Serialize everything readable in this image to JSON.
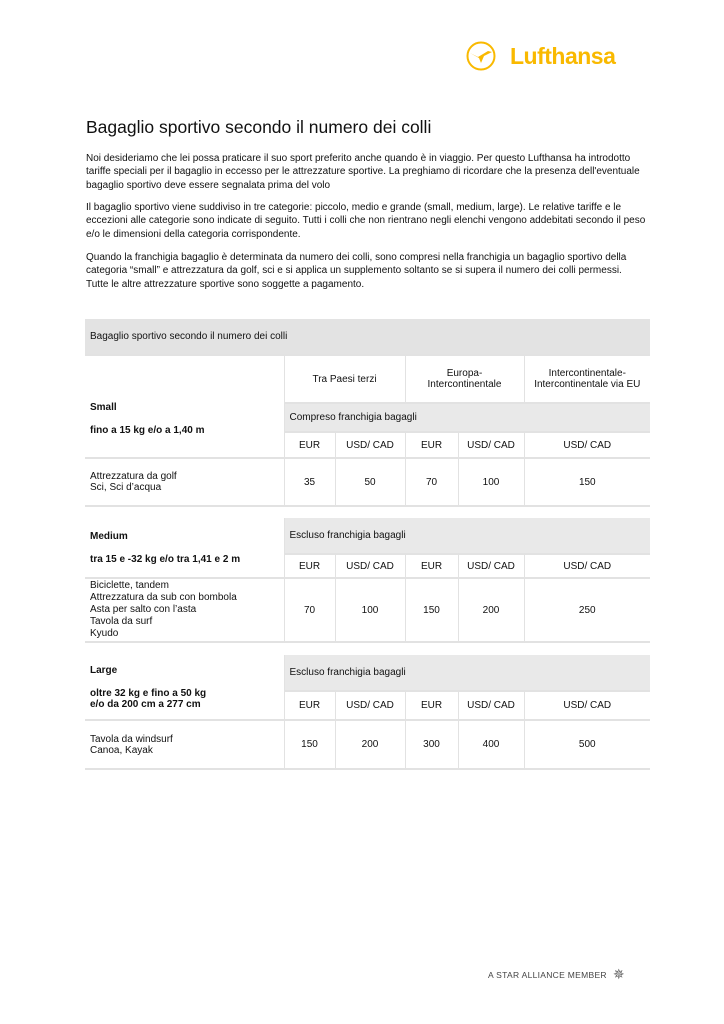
{
  "brand": {
    "name": "Lufthansa",
    "color": "#f9b900"
  },
  "title": "Bagaglio sportivo secondo il numero dei colli",
  "paragraphs": [
    "Noi desideriamo che lei possa praticare il suo sport preferito anche quando è in viaggio. Per questo Lufthansa ha introdotto tariffe speciali per il bagaglio in eccesso per le attrezzature sportive. La preghiamo di ricordare che la presenza dell'eventuale bagaglio sportivo deve essere segnalata prima del volo",
    "Il bagaglio sportivo viene suddiviso in tre categorie: piccolo, medio e grande (small, medium, large). Le relative tariffe e le eccezioni alle categorie sono indicate di seguito. Tutti i colli che non rientrano negli elenchi vengono addebitati secondo il peso e/o le dimensioni della categoria corrispondente.",
    "Quando la franchigia bagaglio è determinata da  numero dei colli, sono compresi nella franchigia un bagaglio sportivo della categoria “small” e attrezzatura da golf, sci e si applica un supplemento soltanto se si supera il numero dei colli permessi. Tutte le altre attrezzature sportive sono soggette a pagamento."
  ],
  "table": {
    "header": "Bagaglio sportivo secondo il numero dei colli",
    "routes": [
      "Tra Paesi terzi",
      "Europa-\nIntercontinentale",
      "Intercontinentale-\nIntercontinentale via EU"
    ],
    "currencies": [
      "EUR",
      "USD/ CAD",
      "EUR",
      "USD/ CAD",
      "USD/ CAD"
    ],
    "sections": [
      {
        "name": "Small",
        "limit": "fino a 15 kg e/o a 1,40 m",
        "franchise": "Compreso franchigia bagagli",
        "items": "Attrezzatura da golf\nSci, Sci d’acqua",
        "prices": [
          "35",
          "50",
          "70",
          "100",
          "150"
        ]
      },
      {
        "name": "Medium",
        "limit": "tra 15 e -32 kg e/o tra 1,41 e 2 m",
        "franchise": "Escluso franchigia bagagli",
        "items": "Biciclette, tandem\nAttrezzatura da sub con bombola\nAsta per salto con l’asta\nTavola da surf\nKyudo",
        "prices": [
          "70",
          "100",
          "150",
          "200",
          "250"
        ]
      },
      {
        "name": "Large",
        "limit": "oltre 32 kg e fino a 50 kg\ne/o da 200 cm a 277 cm",
        "franchise": "Escluso franchigia bagagli",
        "items": "Tavola da windsurf\nCanoa, Kayak",
        "prices": [
          "150",
          "200",
          "300",
          "400",
          "500"
        ]
      }
    ]
  },
  "footer": "A STAR ALLIANCE MEMBER"
}
